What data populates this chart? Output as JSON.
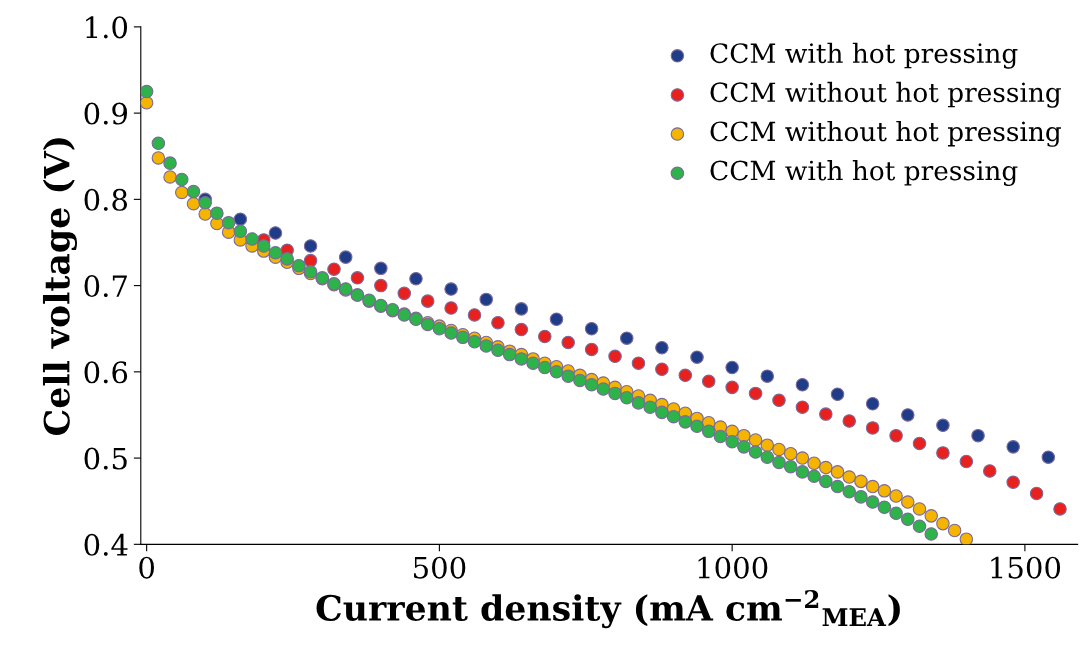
{
  "chart_data": {
    "type": "scatter",
    "xlabel": "Current density (mA cm$^{−2}$$_{MEA}$)",
    "ylabel": "Cell voltage (V)",
    "xlim": [
      -10,
      1590
    ],
    "ylim": [
      0.4,
      1.0
    ],
    "xticks": [
      0,
      500,
      1000,
      1500
    ],
    "yticks": [
      0.4,
      0.5,
      0.6,
      0.7,
      0.8,
      0.9,
      {
        "value": 1.0,
        "label": "1.0"
      }
    ],
    "grid": false,
    "legend": "top right",
    "marker": "circle",
    "series": [
      {
        "name": "CCM with hot pressing",
        "color": "#1f3c88",
        "x": [
          100,
          160,
          220,
          280,
          340,
          400,
          460,
          520,
          580,
          640,
          700,
          760,
          820,
          880,
          940,
          1000,
          1060,
          1120,
          1180,
          1240,
          1300,
          1360,
          1420,
          1480,
          1540
        ],
        "values": [
          0.8,
          0.777,
          0.761,
          0.746,
          0.733,
          0.72,
          0.708,
          0.696,
          0.684,
          0.673,
          0.661,
          0.65,
          0.639,
          0.628,
          0.617,
          0.605,
          0.595,
          0.585,
          0.574,
          0.563,
          0.55,
          0.538,
          0.526,
          0.513,
          0.501
        ]
      },
      {
        "name": "CCM without hot pressing",
        "color": "#e8201e",
        "x": [
          200,
          240,
          280,
          320,
          360,
          400,
          440,
          480,
          520,
          560,
          600,
          640,
          680,
          720,
          760,
          800,
          840,
          880,
          920,
          960,
          1000,
          1040,
          1080,
          1120,
          1160,
          1200,
          1240,
          1280,
          1320,
          1360,
          1400,
          1440,
          1480,
          1520,
          1560
        ],
        "values": [
          0.753,
          0.741,
          0.729,
          0.719,
          0.709,
          0.7,
          0.691,
          0.682,
          0.674,
          0.666,
          0.657,
          0.649,
          0.641,
          0.634,
          0.626,
          0.618,
          0.61,
          0.603,
          0.596,
          0.589,
          0.582,
          0.575,
          0.567,
          0.559,
          0.551,
          0.543,
          0.535,
          0.526,
          0.517,
          0.506,
          0.496,
          0.485,
          0.472,
          0.459,
          0.441
        ]
      },
      {
        "name": "CCM without hot pressing",
        "color": "#f5b400",
        "x": [
          0,
          20,
          40,
          60,
          80,
          100,
          120,
          140,
          160,
          180,
          200,
          220,
          240,
          260,
          280,
          300,
          320,
          340,
          360,
          380,
          400,
          420,
          440,
          460,
          480,
          500,
          520,
          540,
          560,
          580,
          600,
          620,
          640,
          660,
          680,
          700,
          720,
          740,
          760,
          780,
          800,
          820,
          840,
          860,
          880,
          900,
          920,
          940,
          960,
          980,
          1000,
          1020,
          1040,
          1060,
          1080,
          1100,
          1120,
          1140,
          1160,
          1180,
          1200,
          1220,
          1240,
          1260,
          1280,
          1300,
          1320,
          1340,
          1360,
          1380,
          1400
        ],
        "values": [
          0.912,
          0.848,
          0.826,
          0.808,
          0.795,
          0.783,
          0.772,
          0.762,
          0.753,
          0.746,
          0.74,
          0.733,
          0.727,
          0.72,
          0.714,
          0.708,
          0.701,
          0.695,
          0.689,
          0.682,
          0.676,
          0.671,
          0.667,
          0.662,
          0.657,
          0.653,
          0.648,
          0.643,
          0.639,
          0.634,
          0.629,
          0.624,
          0.62,
          0.615,
          0.61,
          0.606,
          0.601,
          0.596,
          0.591,
          0.587,
          0.582,
          0.577,
          0.572,
          0.567,
          0.562,
          0.557,
          0.552,
          0.546,
          0.541,
          0.536,
          0.531,
          0.526,
          0.521,
          0.515,
          0.51,
          0.505,
          0.5,
          0.494,
          0.489,
          0.484,
          0.478,
          0.473,
          0.467,
          0.462,
          0.456,
          0.449,
          0.441,
          0.433,
          0.424,
          0.416,
          0.406
        ]
      },
      {
        "name": "CCM with hot pressing",
        "color": "#2db34a",
        "x": [
          0,
          20,
          40,
          60,
          80,
          100,
          120,
          140,
          160,
          180,
          200,
          220,
          240,
          260,
          280,
          300,
          320,
          340,
          360,
          380,
          400,
          420,
          440,
          460,
          480,
          500,
          520,
          540,
          560,
          580,
          600,
          620,
          640,
          660,
          680,
          700,
          720,
          740,
          760,
          780,
          800,
          820,
          840,
          860,
          880,
          900,
          920,
          940,
          960,
          980,
          1000,
          1020,
          1040,
          1060,
          1080,
          1100,
          1120,
          1140,
          1160,
          1180,
          1200,
          1220,
          1240,
          1260,
          1280,
          1300,
          1320,
          1340
        ],
        "values": [
          0.925,
          0.865,
          0.842,
          0.823,
          0.809,
          0.796,
          0.784,
          0.773,
          0.763,
          0.754,
          0.746,
          0.738,
          0.731,
          0.723,
          0.716,
          0.709,
          0.702,
          0.696,
          0.689,
          0.683,
          0.677,
          0.672,
          0.666,
          0.661,
          0.655,
          0.65,
          0.645,
          0.64,
          0.635,
          0.63,
          0.625,
          0.62,
          0.615,
          0.61,
          0.605,
          0.6,
          0.595,
          0.59,
          0.585,
          0.58,
          0.575,
          0.57,
          0.564,
          0.559,
          0.553,
          0.548,
          0.542,
          0.537,
          0.531,
          0.525,
          0.519,
          0.513,
          0.507,
          0.501,
          0.495,
          0.49,
          0.484,
          0.479,
          0.473,
          0.467,
          0.461,
          0.455,
          0.449,
          0.443,
          0.436,
          0.429,
          0.421,
          0.412
        ]
      }
    ]
  }
}
